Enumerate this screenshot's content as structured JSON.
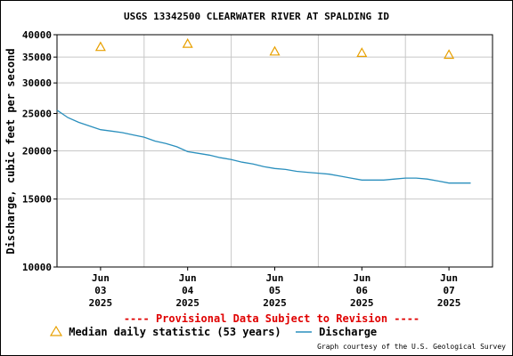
{
  "title": "USGS 13342500 CLEARWATER RIVER AT SPALDING ID",
  "chart_data": {
    "type": "line",
    "ylabel": "Discharge, cubic feet per second",
    "yscale": "log",
    "ylim": [
      10000,
      40000
    ],
    "yticks": [
      "10000",
      "15000",
      "20000",
      "25000",
      "30000",
      "35000",
      "40000"
    ],
    "ytick_values": [
      10000,
      15000,
      20000,
      25000,
      30000,
      35000,
      40000
    ],
    "xlim": [
      "2025-06-02 12:00",
      "2025-06-07 12:00"
    ],
    "xticks": [
      {
        "month": "Jun",
        "day": "03",
        "year": "2025",
        "date": "2025-06-03"
      },
      {
        "month": "Jun",
        "day": "04",
        "year": "2025",
        "date": "2025-06-04"
      },
      {
        "month": "Jun",
        "day": "05",
        "year": "2025",
        "date": "2025-06-05"
      },
      {
        "month": "Jun",
        "day": "06",
        "year": "2025",
        "date": "2025-06-06"
      },
      {
        "month": "Jun",
        "day": "07",
        "year": "2025",
        "date": "2025-06-07"
      }
    ],
    "grid": true,
    "series": [
      {
        "name": "Median daily statistic (53 years)",
        "kind": "marker",
        "marker": "triangle",
        "color": "#e8a000",
        "points": [
          {
            "x": "2025-06-03",
            "y": 37200
          },
          {
            "x": "2025-06-04",
            "y": 37900
          },
          {
            "x": "2025-06-05",
            "y": 36200
          },
          {
            "x": "2025-06-06",
            "y": 35900
          },
          {
            "x": "2025-06-07",
            "y": 35500
          }
        ]
      },
      {
        "name": "Discharge",
        "kind": "line",
        "color": "#2a8fbd",
        "points": [
          {
            "x": "2025-06-02 12:00",
            "y": 25500
          },
          {
            "x": "2025-06-02 15:00",
            "y": 24400
          },
          {
            "x": "2025-06-02 18:00",
            "y": 23700
          },
          {
            "x": "2025-06-02 21:00",
            "y": 23200
          },
          {
            "x": "2025-06-03 00:00",
            "y": 22700
          },
          {
            "x": "2025-06-03 03:00",
            "y": 22500
          },
          {
            "x": "2025-06-03 06:00",
            "y": 22300
          },
          {
            "x": "2025-06-03 09:00",
            "y": 22000
          },
          {
            "x": "2025-06-03 12:00",
            "y": 21700
          },
          {
            "x": "2025-06-03 15:00",
            "y": 21200
          },
          {
            "x": "2025-06-03 18:00",
            "y": 20900
          },
          {
            "x": "2025-06-03 21:00",
            "y": 20500
          },
          {
            "x": "2025-06-04 00:00",
            "y": 19900
          },
          {
            "x": "2025-06-04 03:00",
            "y": 19700
          },
          {
            "x": "2025-06-04 06:00",
            "y": 19500
          },
          {
            "x": "2025-06-04 09:00",
            "y": 19200
          },
          {
            "x": "2025-06-04 12:00",
            "y": 19000
          },
          {
            "x": "2025-06-04 15:00",
            "y": 18700
          },
          {
            "x": "2025-06-04 18:00",
            "y": 18500
          },
          {
            "x": "2025-06-04 21:00",
            "y": 18200
          },
          {
            "x": "2025-06-05 00:00",
            "y": 18000
          },
          {
            "x": "2025-06-05 03:00",
            "y": 17900
          },
          {
            "x": "2025-06-05 06:00",
            "y": 17700
          },
          {
            "x": "2025-06-05 09:00",
            "y": 17600
          },
          {
            "x": "2025-06-05 12:00",
            "y": 17500
          },
          {
            "x": "2025-06-05 15:00",
            "y": 17400
          },
          {
            "x": "2025-06-05 18:00",
            "y": 17200
          },
          {
            "x": "2025-06-05 21:00",
            "y": 17000
          },
          {
            "x": "2025-06-06 00:00",
            "y": 16800
          },
          {
            "x": "2025-06-06 03:00",
            "y": 16800
          },
          {
            "x": "2025-06-06 06:00",
            "y": 16800
          },
          {
            "x": "2025-06-06 09:00",
            "y": 16900
          },
          {
            "x": "2025-06-06 12:00",
            "y": 17000
          },
          {
            "x": "2025-06-06 15:00",
            "y": 17000
          },
          {
            "x": "2025-06-06 18:00",
            "y": 16900
          },
          {
            "x": "2025-06-06 21:00",
            "y": 16700
          },
          {
            "x": "2025-06-07 00:00",
            "y": 16500
          },
          {
            "x": "2025-06-07 03:00",
            "y": 16500
          },
          {
            "x": "2025-06-07 06:00",
            "y": 16500
          }
        ]
      }
    ]
  },
  "provisional_notice": "---- Provisional Data Subject to Revision ----",
  "legend": {
    "median_label": "Median daily statistic (53 years)",
    "discharge_label": "Discharge"
  },
  "credit": "Graph courtesy of the U.S. Geological Survey"
}
